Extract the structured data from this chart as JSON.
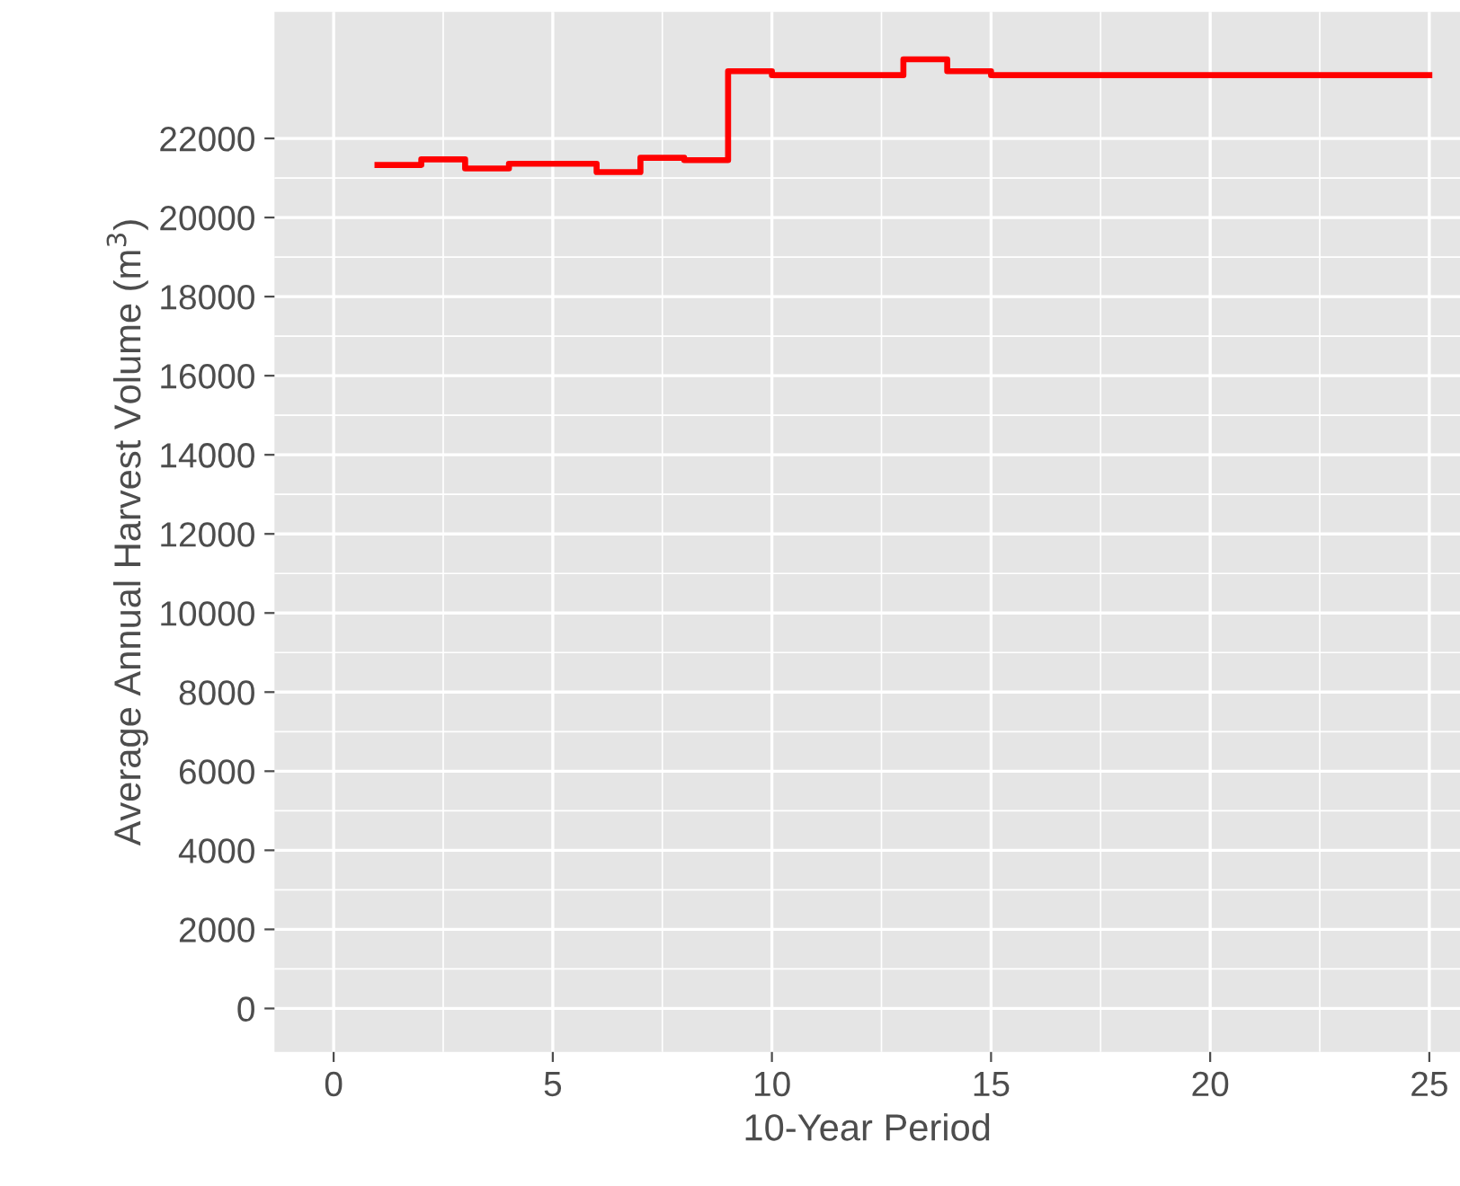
{
  "chart_data": {
    "type": "step",
    "xlabel": "10-Year Period",
    "ylabel": "Average Annual Harvest Volume (m$^{3}$)",
    "x": [
      1,
      2,
      3,
      4,
      5,
      6,
      7,
      8,
      9,
      10,
      11,
      12,
      13,
      14,
      15,
      16,
      17,
      18,
      19,
      20,
      21,
      22,
      23,
      24,
      25
    ],
    "series": [
      {
        "color": "#ff0000",
        "values": [
          21330,
          21470,
          21240,
          21360,
          21360,
          21150,
          21510,
          21450,
          23700,
          23600,
          23600,
          23600,
          24000,
          23700,
          23600,
          23600,
          23600,
          23600,
          23600,
          23600,
          23600,
          23600,
          23600,
          23600,
          23600
        ]
      }
    ],
    "xlim": [
      -1.35,
      25.7
    ],
    "ylim": [
      -1100,
      25200
    ],
    "xticks": [
      0,
      5,
      10,
      15,
      20,
      25
    ],
    "yticks": [
      0,
      2000,
      4000,
      6000,
      8000,
      10000,
      12000,
      14000,
      16000,
      18000,
      20000,
      22000
    ],
    "grid": true,
    "legend": false
  }
}
